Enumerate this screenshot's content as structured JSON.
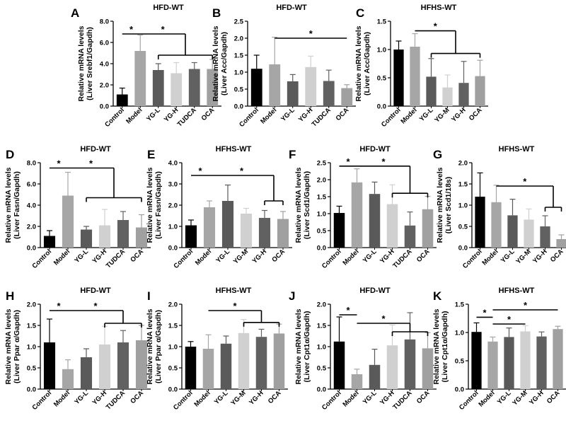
{
  "figure": {
    "description_text": ""
  },
  "chart_data": [
    {
      "panel": "A",
      "type": "bar",
      "title": "HFD-WT",
      "ylabel": "Relative mRNA levels",
      "ylabel2": "(Liver Srebf1/Gapdh)",
      "ylim": [
        0,
        8
      ],
      "yticks": [
        "0.0",
        "2.0",
        "4.0",
        "6.0",
        "8.0"
      ],
      "categories": [
        "Control",
        "Model",
        "YG-L",
        "YG-H",
        "TUDCA",
        "OCA"
      ],
      "values": [
        1.1,
        5.2,
        3.4,
        3.1,
        3.5,
        3.5
      ],
      "errors": [
        0.6,
        1.5,
        0.6,
        1.0,
        0.6,
        0.9
      ],
      "colors": [
        "#000000",
        "#a6a6a6",
        "#5a5a5a",
        "#d0d0d0",
        "#616161",
        "#a0a0a0"
      ],
      "annotations": [
        {
          "type": "line",
          "from": 0,
          "to": 1,
          "y": 6.8,
          "label": "*"
        },
        {
          "type": "bracket",
          "from": 1,
          "to": 5,
          "to_group": [
            2,
            5
          ],
          "y": 6.8,
          "y_group": 4.8,
          "label": "*"
        }
      ]
    },
    {
      "panel": "B",
      "type": "bar",
      "title": "HFD-WT",
      "ylabel": "Relative mRNA levels",
      "ylabel2": "(Liver Acc/Gapdh)",
      "ylim": [
        0,
        2.5
      ],
      "yticks": [
        "0.0",
        "0.5",
        "1.0",
        "1.5",
        "2.0",
        "2.5"
      ],
      "categories": [
        "Control",
        "Model",
        "YG-L",
        "YG-H",
        "TUDCA",
        "OCA"
      ],
      "values": [
        1.1,
        1.23,
        0.73,
        1.15,
        0.74,
        0.53
      ],
      "errors": [
        0.4,
        0.8,
        0.2,
        0.32,
        0.32,
        0.1
      ],
      "colors": [
        "#000000",
        "#a6a6a6",
        "#5a5a5a",
        "#d0d0d0",
        "#616161",
        "#a0a0a0"
      ],
      "annotations": [
        {
          "type": "line",
          "from": 1,
          "to": 5,
          "y": 2.0,
          "label": "*"
        }
      ]
    },
    {
      "panel": "C",
      "type": "bar",
      "title": "HFHS-WT",
      "ylabel": "Relative mRNA levels",
      "ylabel2": "(Liver Acc/Gapdh)",
      "ylim": [
        0,
        1.5
      ],
      "yticks": [
        "0.0",
        "0.5",
        "1.0",
        "1.5"
      ],
      "categories": [
        "Control",
        "Model",
        "YG-L",
        "YG-M",
        "YG-H",
        "OCA"
      ],
      "values": [
        1.0,
        1.05,
        0.52,
        0.33,
        0.41,
        0.53
      ],
      "errors": [
        0.15,
        0.23,
        0.32,
        0.22,
        0.38,
        0.28
      ],
      "colors": [
        "#000000",
        "#a6a6a6",
        "#5a5a5a",
        "#d0d0d0",
        "#616161",
        "#a0a0a0"
      ],
      "annotations": [
        {
          "type": "bracket",
          "from": 1,
          "to": 5,
          "to_group": [
            2,
            5
          ],
          "y": 1.33,
          "y_group": 0.93,
          "label": "*"
        }
      ]
    },
    {
      "panel": "D",
      "type": "bar",
      "title": "HFD-WT",
      "ylabel": "Relative mRNA levels",
      "ylabel2": "(Liver Fasn/Gapdh)",
      "ylim": [
        0,
        8
      ],
      "yticks": [
        "0.0",
        "2.0",
        "4.0",
        "6.0",
        "8.0"
      ],
      "categories": [
        "Control",
        "Model",
        "YG-L",
        "YG-H",
        "TUDCA",
        "OCA"
      ],
      "values": [
        1.1,
        4.9,
        1.7,
        2.1,
        2.6,
        1.9
      ],
      "errors": [
        0.5,
        2.2,
        0.3,
        1.5,
        0.8,
        1.2
      ],
      "colors": [
        "#000000",
        "#a6a6a6",
        "#5a5a5a",
        "#d0d0d0",
        "#616161",
        "#a0a0a0"
      ],
      "annotations": [
        {
          "type": "line",
          "from": 0,
          "to": 1,
          "y": 7.5,
          "label": "*"
        },
        {
          "type": "bracket",
          "from": 1,
          "to": 5,
          "to_group": [
            2,
            5
          ],
          "y": 7.5,
          "y_group": 4.7,
          "label": "*"
        }
      ]
    },
    {
      "panel": "E",
      "type": "bar",
      "title": "HFHS-WT",
      "ylabel": "Relative mRNA levels",
      "ylabel2": "(Liver Fasn/Gapdh)",
      "ylim": [
        0,
        4
      ],
      "yticks": [
        "0.0",
        "1.0",
        "2.0",
        "3.0",
        "4.0"
      ],
      "categories": [
        "Control",
        "Model",
        "YG-L",
        "YG-M",
        "YG-H",
        "OCA"
      ],
      "values": [
        1.05,
        1.9,
        2.2,
        1.6,
        1.4,
        1.35
      ],
      "errors": [
        0.25,
        0.3,
        0.75,
        0.25,
        0.35,
        0.35
      ],
      "colors": [
        "#000000",
        "#a6a6a6",
        "#5a5a5a",
        "#d0d0d0",
        "#616161",
        "#a0a0a0"
      ],
      "annotations": [
        {
          "type": "line",
          "from": 0,
          "to": 1,
          "y": 3.4,
          "label": "*"
        },
        {
          "type": "bracket",
          "from": 1,
          "to": 5,
          "to_group": [
            4,
            5
          ],
          "y": 3.4,
          "y_group": 2.2,
          "label": "*"
        }
      ]
    },
    {
      "panel": "F",
      "type": "bar",
      "title": "HFD-WT",
      "ylabel": "Relative mRNA levels",
      "ylabel2": "(Liver Scd1/Gapdh)",
      "ylim": [
        0,
        2.5
      ],
      "yticks": [
        "0.0",
        "0.5",
        "1.0",
        "1.5",
        "2.0",
        "2.5"
      ],
      "categories": [
        "Control",
        "Model",
        "YG-L",
        "YG-H",
        "TUDCA",
        "OCA"
      ],
      "values": [
        1.02,
        1.92,
        1.58,
        1.28,
        0.65,
        1.13
      ],
      "errors": [
        0.2,
        0.4,
        0.35,
        0.57,
        0.4,
        0.38
      ],
      "colors": [
        "#000000",
        "#a6a6a6",
        "#5a5a5a",
        "#d0d0d0",
        "#616161",
        "#a0a0a0"
      ],
      "annotations": [
        {
          "type": "line",
          "from": 0,
          "to": 1,
          "y": 2.4,
          "label": "*"
        },
        {
          "type": "bracket",
          "from": 1,
          "to": 5,
          "to_group": [
            3,
            5
          ],
          "y": 2.4,
          "y_group": 1.6,
          "label": "*"
        }
      ]
    },
    {
      "panel": "G",
      "type": "bar",
      "title": "HFHS-WT",
      "ylabel": "Relative mRNA levels",
      "ylabel2": "(Liver Scd1/18s)",
      "ylim": [
        0,
        2
      ],
      "yticks": [
        "0.0",
        "0.5",
        "1.0",
        "1.5",
        "2.0"
      ],
      "categories": [
        "Control",
        "Model",
        "YG-L",
        "YG-M",
        "YG-H",
        "OCA"
      ],
      "values": [
        1.2,
        1.07,
        0.76,
        0.66,
        0.5,
        0.2
      ],
      "errors": [
        0.56,
        0.4,
        0.38,
        0.25,
        0.25,
        0.1
      ],
      "colors": [
        "#000000",
        "#a6a6a6",
        "#5a5a5a",
        "#d0d0d0",
        "#616161",
        "#a0a0a0"
      ],
      "annotations": [
        {
          "type": "bracket",
          "from": 1,
          "to": 5,
          "to_group": [
            4,
            5
          ],
          "y": 1.45,
          "y_group": 0.95,
          "label": "*"
        }
      ]
    },
    {
      "panel": "H",
      "type": "bar",
      "title": "HFD-WT",
      "ylabel": "Relative mRNA levels",
      "ylabel2": "(Liver Ppar α/Gapdh)",
      "ylim": [
        0,
        2
      ],
      "yticks": [
        "0.0",
        "0.5",
        "1.0",
        "1.5",
        "2.0"
      ],
      "categories": [
        "Control",
        "Model",
        "YG-L",
        "YG-H",
        "TUDCA",
        "OCA"
      ],
      "values": [
        1.1,
        0.47,
        0.75,
        1.05,
        1.1,
        1.15
      ],
      "errors": [
        0.55,
        0.22,
        0.2,
        0.43,
        0.28,
        0.35
      ],
      "colors": [
        "#000000",
        "#a6a6a6",
        "#5a5a5a",
        "#d0d0d0",
        "#616161",
        "#a0a0a0"
      ],
      "annotations": [
        {
          "type": "line",
          "from": 0,
          "to": 1,
          "y": 1.85,
          "label": "*"
        },
        {
          "type": "bracket",
          "from": 1,
          "to": 5,
          "to_group": [
            3,
            5
          ],
          "y": 1.85,
          "y_group": 1.55,
          "label": "*"
        }
      ]
    },
    {
      "panel": "I",
      "type": "bar",
      "title": "HFHS-WT",
      "ylabel": "Relative mRNA levels",
      "ylabel2": "(Liver Ppar α/Gapdh)",
      "ylim": [
        0,
        2
      ],
      "yticks": [
        "0.0",
        "0.5",
        "1.0",
        "1.5",
        "2.0"
      ],
      "categories": [
        "Control",
        "Model",
        "YG-L",
        "YG-M",
        "YG-H",
        "OCA"
      ],
      "values": [
        1.0,
        0.95,
        1.07,
        1.32,
        1.23,
        1.31
      ],
      "errors": [
        0.12,
        0.33,
        0.18,
        0.32,
        0.18,
        0.22
      ],
      "colors": [
        "#000000",
        "#a6a6a6",
        "#5a5a5a",
        "#d0d0d0",
        "#616161",
        "#a0a0a0"
      ],
      "annotations": [
        {
          "type": "bracket",
          "from": 1,
          "to": 5,
          "to_group": [
            3,
            5
          ],
          "y": 1.85,
          "y_group": 1.57,
          "label": "*"
        }
      ]
    },
    {
      "panel": "J",
      "type": "bar",
      "title": "HFD-WT",
      "ylabel": "Relative mRNA levels",
      "ylabel2": "(Liver Cpt1α/Gapdh)",
      "ylim": [
        0,
        2
      ],
      "yticks": [
        "0.0",
        "0.5",
        "1.0",
        "1.5",
        "2.0"
      ],
      "categories": [
        "Control",
        "Model",
        "YG-L",
        "YG-H",
        "TUDCA",
        "OCA"
      ],
      "values": [
        1.12,
        0.35,
        0.57,
        1.03,
        1.17,
        0.96
      ],
      "errors": [
        0.58,
        0.12,
        0.37,
        0.48,
        0.63,
        0.37
      ],
      "colors": [
        "#000000",
        "#a6a6a6",
        "#5a5a5a",
        "#d0d0d0",
        "#616161",
        "#a0a0a0"
      ],
      "annotations": [
        {
          "type": "line",
          "from": 0,
          "to": 1,
          "y": 1.75,
          "label": "*"
        },
        {
          "type": "bracket",
          "from": 1,
          "to": 5,
          "to_group": [
            3,
            5
          ],
          "y": 1.55,
          "y_group": 1.35,
          "label": "*"
        }
      ]
    },
    {
      "panel": "K",
      "type": "bar",
      "title": "HFHS-WT",
      "ylabel": "Relative mRNA levels",
      "ylabel2": "(Liver Cpt1α/Gapdh)",
      "ylim": [
        0,
        1.5
      ],
      "yticks": [
        "0.0",
        "0.5",
        "1.0",
        "1.5"
      ],
      "categories": [
        "Control",
        "Model",
        "YG-L",
        "YG-M",
        "YG-H",
        "OCA"
      ],
      "values": [
        1.01,
        0.84,
        0.92,
        1.02,
        0.93,
        1.06
      ],
      "errors": [
        0.16,
        0.08,
        0.16,
        0.1,
        0.08,
        0.05
      ],
      "colors": [
        "#000000",
        "#a6a6a6",
        "#5a5a5a",
        "#d0d0d0",
        "#616161",
        "#a0a0a0"
      ],
      "annotations": [
        {
          "type": "line",
          "from": 0,
          "to": 1,
          "y": 1.27,
          "label": "*"
        },
        {
          "type": "line",
          "from": 1,
          "to": 3,
          "y": 1.15,
          "label": "*"
        },
        {
          "type": "line",
          "from": 1,
          "to": 5,
          "y": 1.4,
          "label": "*"
        }
      ]
    }
  ]
}
